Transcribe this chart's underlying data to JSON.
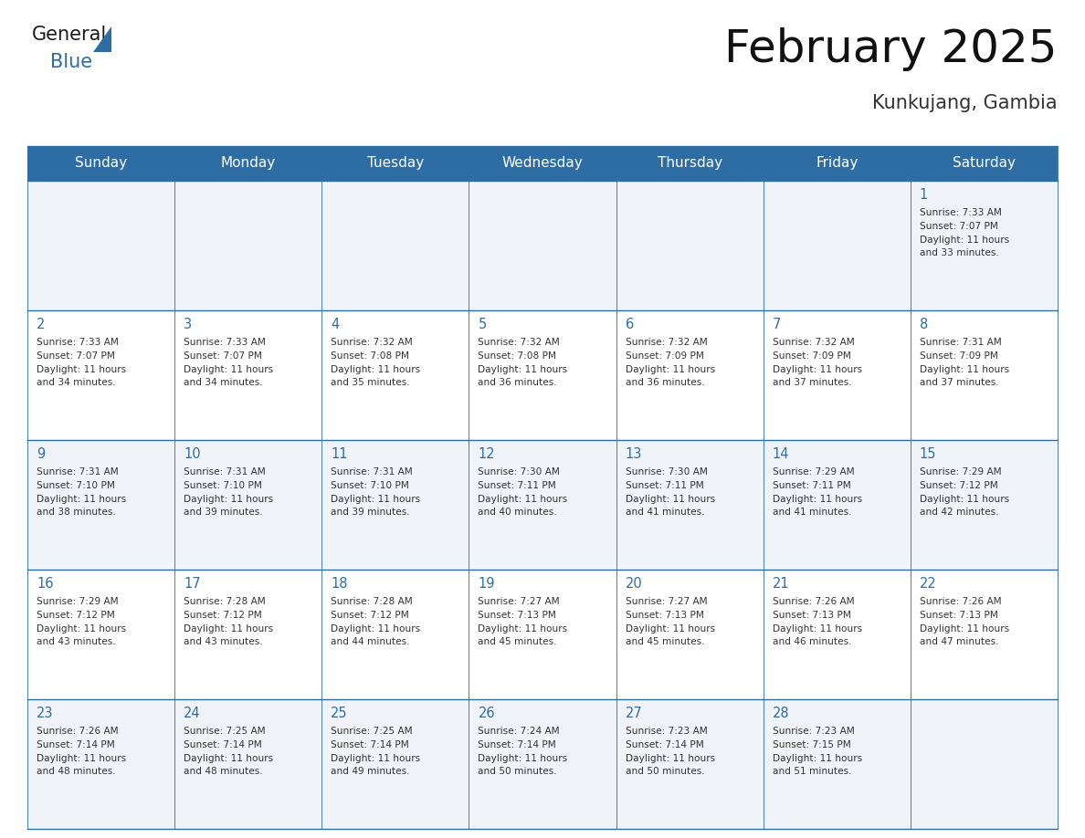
{
  "title": "February 2025",
  "subtitle": "Kunkujang, Gambia",
  "days_of_week": [
    "Sunday",
    "Monday",
    "Tuesday",
    "Wednesday",
    "Thursday",
    "Friday",
    "Saturday"
  ],
  "header_bg": "#2E6DA4",
  "header_text": "#FFFFFF",
  "cell_bg_odd": "#F0F4F8",
  "cell_bg_even": "#FFFFFF",
  "grid_line_color": "#2E6DA4",
  "day_number_color": "#2E6DA4",
  "text_color": "#333333",
  "background_color": "#FFFFFF",
  "calendar": [
    [
      null,
      null,
      null,
      null,
      null,
      null,
      {
        "day": 1,
        "sunrise": "7:33 AM",
        "sunset": "7:07 PM",
        "daylight": "11 hours and 33 minutes."
      }
    ],
    [
      {
        "day": 2,
        "sunrise": "7:33 AM",
        "sunset": "7:07 PM",
        "daylight": "11 hours and 34 minutes."
      },
      {
        "day": 3,
        "sunrise": "7:33 AM",
        "sunset": "7:07 PM",
        "daylight": "11 hours and 34 minutes."
      },
      {
        "day": 4,
        "sunrise": "7:32 AM",
        "sunset": "7:08 PM",
        "daylight": "11 hours and 35 minutes."
      },
      {
        "day": 5,
        "sunrise": "7:32 AM",
        "sunset": "7:08 PM",
        "daylight": "11 hours and 36 minutes."
      },
      {
        "day": 6,
        "sunrise": "7:32 AM",
        "sunset": "7:09 PM",
        "daylight": "11 hours and 36 minutes."
      },
      {
        "day": 7,
        "sunrise": "7:32 AM",
        "sunset": "7:09 PM",
        "daylight": "11 hours and 37 minutes."
      },
      {
        "day": 8,
        "sunrise": "7:31 AM",
        "sunset": "7:09 PM",
        "daylight": "11 hours and 37 minutes."
      }
    ],
    [
      {
        "day": 9,
        "sunrise": "7:31 AM",
        "sunset": "7:10 PM",
        "daylight": "11 hours and 38 minutes."
      },
      {
        "day": 10,
        "sunrise": "7:31 AM",
        "sunset": "7:10 PM",
        "daylight": "11 hours and 39 minutes."
      },
      {
        "day": 11,
        "sunrise": "7:31 AM",
        "sunset": "7:10 PM",
        "daylight": "11 hours and 39 minutes."
      },
      {
        "day": 12,
        "sunrise": "7:30 AM",
        "sunset": "7:11 PM",
        "daylight": "11 hours and 40 minutes."
      },
      {
        "day": 13,
        "sunrise": "7:30 AM",
        "sunset": "7:11 PM",
        "daylight": "11 hours and 41 minutes."
      },
      {
        "day": 14,
        "sunrise": "7:29 AM",
        "sunset": "7:11 PM",
        "daylight": "11 hours and 41 minutes."
      },
      {
        "day": 15,
        "sunrise": "7:29 AM",
        "sunset": "7:12 PM",
        "daylight": "11 hours and 42 minutes."
      }
    ],
    [
      {
        "day": 16,
        "sunrise": "7:29 AM",
        "sunset": "7:12 PM",
        "daylight": "11 hours and 43 minutes."
      },
      {
        "day": 17,
        "sunrise": "7:28 AM",
        "sunset": "7:12 PM",
        "daylight": "11 hours and 43 minutes."
      },
      {
        "day": 18,
        "sunrise": "7:28 AM",
        "sunset": "7:12 PM",
        "daylight": "11 hours and 44 minutes."
      },
      {
        "day": 19,
        "sunrise": "7:27 AM",
        "sunset": "7:13 PM",
        "daylight": "11 hours and 45 minutes."
      },
      {
        "day": 20,
        "sunrise": "7:27 AM",
        "sunset": "7:13 PM",
        "daylight": "11 hours and 45 minutes."
      },
      {
        "day": 21,
        "sunrise": "7:26 AM",
        "sunset": "7:13 PM",
        "daylight": "11 hours and 46 minutes."
      },
      {
        "day": 22,
        "sunrise": "7:26 AM",
        "sunset": "7:13 PM",
        "daylight": "11 hours and 47 minutes."
      }
    ],
    [
      {
        "day": 23,
        "sunrise": "7:26 AM",
        "sunset": "7:14 PM",
        "daylight": "11 hours and 48 minutes."
      },
      {
        "day": 24,
        "sunrise": "7:25 AM",
        "sunset": "7:14 PM",
        "daylight": "11 hours and 48 minutes."
      },
      {
        "day": 25,
        "sunrise": "7:25 AM",
        "sunset": "7:14 PM",
        "daylight": "11 hours and 49 minutes."
      },
      {
        "day": 26,
        "sunrise": "7:24 AM",
        "sunset": "7:14 PM",
        "daylight": "11 hours and 50 minutes."
      },
      {
        "day": 27,
        "sunrise": "7:23 AM",
        "sunset": "7:14 PM",
        "daylight": "11 hours and 50 minutes."
      },
      {
        "day": 28,
        "sunrise": "7:23 AM",
        "sunset": "7:15 PM",
        "daylight": "11 hours and 51 minutes."
      },
      null
    ]
  ]
}
